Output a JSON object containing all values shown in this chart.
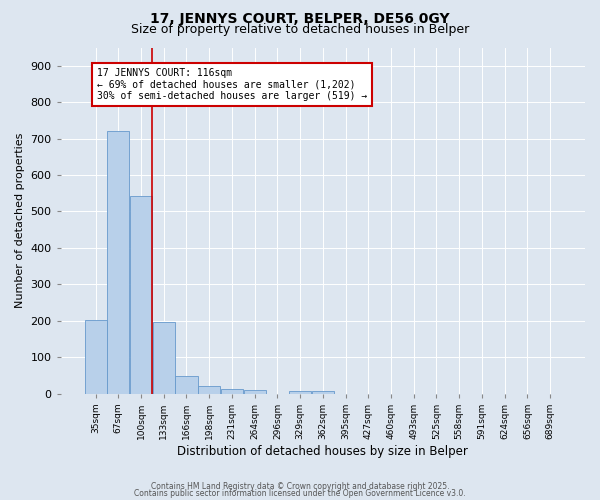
{
  "title1": "17, JENNYS COURT, BELPER, DE56 0GY",
  "title2": "Size of property relative to detached houses in Belper",
  "xlabel": "Distribution of detached houses by size in Belper",
  "ylabel": "Number of detached properties",
  "bar_labels": [
    "35sqm",
    "67sqm",
    "100sqm",
    "133sqm",
    "166sqm",
    "198sqm",
    "231sqm",
    "264sqm",
    "296sqm",
    "329sqm",
    "362sqm",
    "395sqm",
    "427sqm",
    "460sqm",
    "493sqm",
    "525sqm",
    "558sqm",
    "591sqm",
    "624sqm",
    "656sqm",
    "689sqm"
  ],
  "bar_values": [
    203,
    722,
    541,
    196,
    47,
    20,
    13,
    10,
    0,
    7,
    7,
    0,
    0,
    0,
    0,
    0,
    0,
    0,
    0,
    0,
    0
  ],
  "bar_color": "#b8d0ea",
  "bar_edgecolor": "#6699cc",
  "background_color": "#dde6f0",
  "grid_color": "#ffffff",
  "vline_color": "#cc0000",
  "annotation_text": "17 JENNYS COURT: 116sqm\n← 69% of detached houses are smaller (1,202)\n30% of semi-detached houses are larger (519) →",
  "annotation_box_facecolor": "#ffffff",
  "annotation_box_edgecolor": "#cc0000",
  "ylim": [
    0,
    950
  ],
  "yticks": [
    0,
    100,
    200,
    300,
    400,
    500,
    600,
    700,
    800,
    900
  ],
  "footer1": "Contains HM Land Registry data © Crown copyright and database right 2025.",
  "footer2": "Contains public sector information licensed under the Open Government Licence v3.0."
}
